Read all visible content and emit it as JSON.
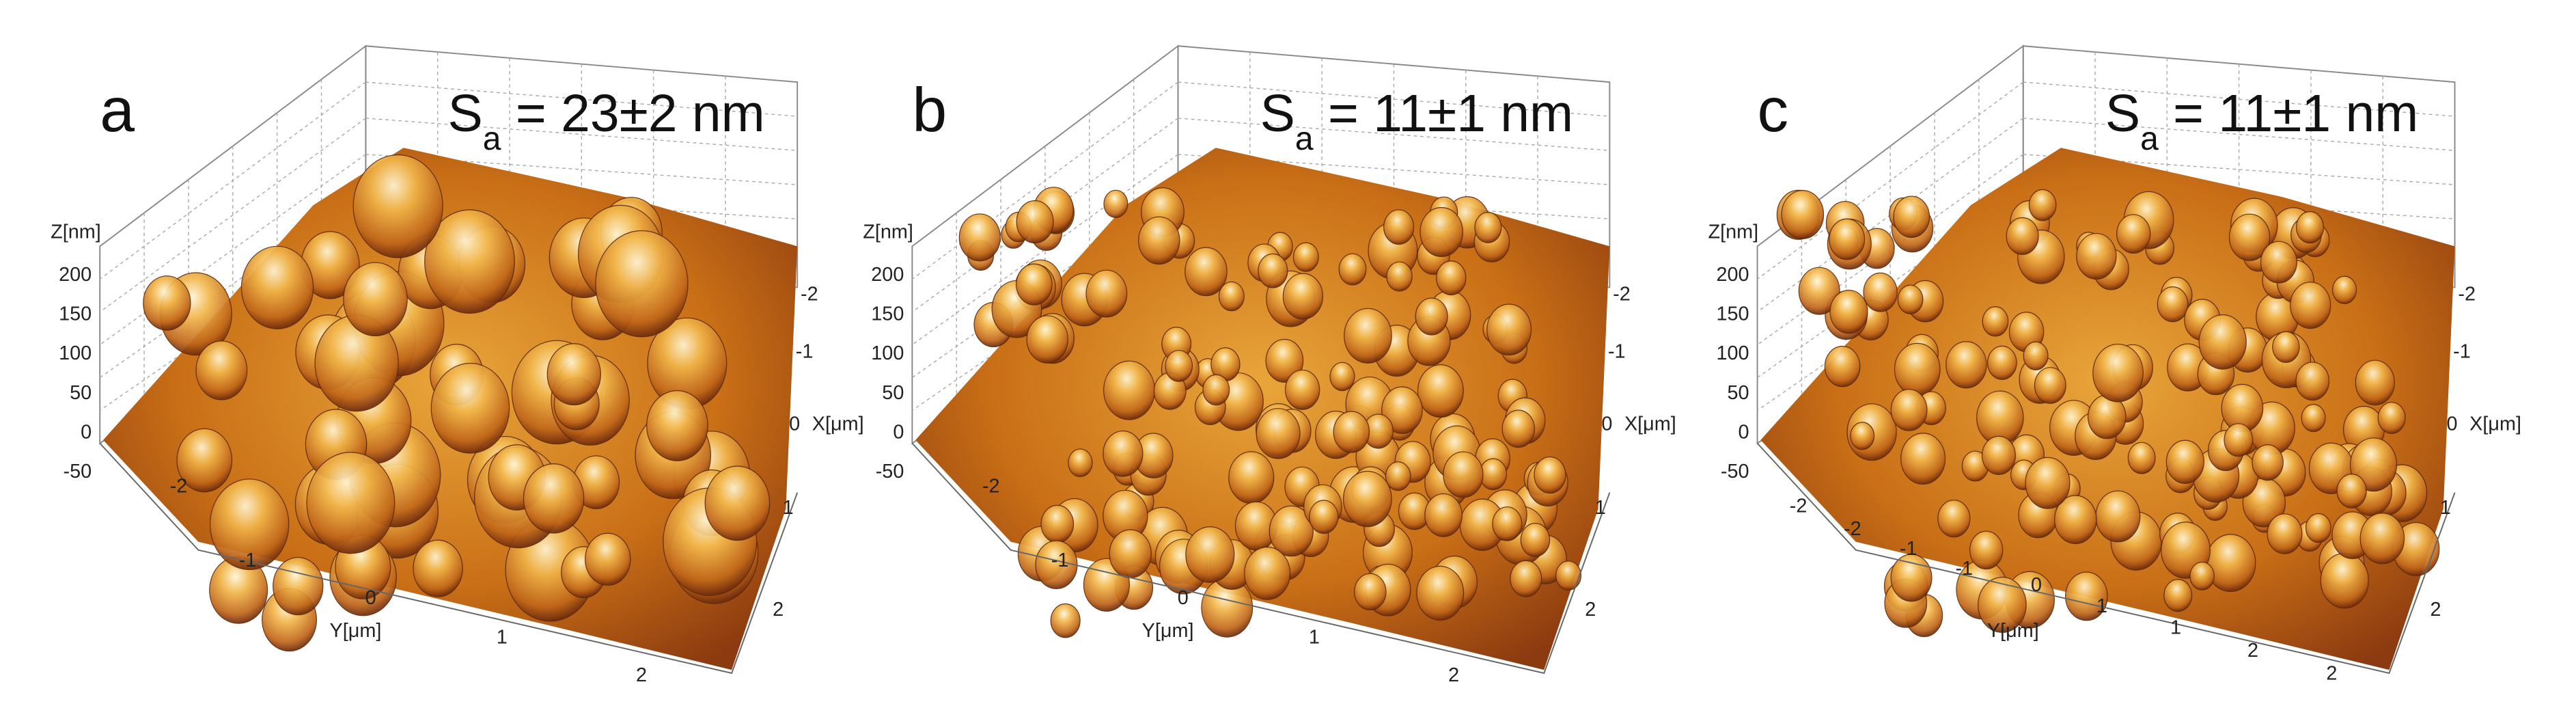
{
  "panels": [
    {
      "label": "a",
      "sa_symbol": "S",
      "sa_subscript": "a",
      "sa_value": " = 23±2 nm",
      "z_axis_title": "Z[nm]",
      "z_ticks": [
        "200",
        "150",
        "100",
        "50",
        "0",
        "-50"
      ],
      "x_ticks": [
        "-2",
        "-1",
        "0",
        "1",
        "2"
      ],
      "x_axis_title": "X[μm]",
      "y_ticks": [
        "-2",
        "-1",
        "0",
        "1",
        "2"
      ],
      "y_axis_title": "Y[μm]"
    },
    {
      "label": "b",
      "sa_symbol": "S",
      "sa_subscript": "a",
      "sa_value": " = 11±1 nm",
      "z_axis_title": "Z[nm]",
      "z_ticks": [
        "200",
        "150",
        "100",
        "50",
        "0",
        "-50"
      ],
      "x_ticks": [
        "-2",
        "-1",
        "0",
        "1",
        "2"
      ],
      "x_axis_title": "X[μm]",
      "y_ticks": [
        "-2",
        "-1",
        "0",
        "1",
        "2"
      ],
      "y_axis_title": "Y[μm]"
    },
    {
      "label": "c",
      "sa_symbol": "S",
      "sa_subscript": "a",
      "sa_value": " = 11±1 nm",
      "z_axis_title": "Z[nm]",
      "z_ticks": [
        "200",
        "150",
        "100",
        "50",
        "0",
        "-50"
      ],
      "x_ticks": [
        "-2",
        "-1",
        "0",
        "1",
        "2"
      ],
      "x_axis_title": "X[μm]",
      "y_ticks": [
        "-2",
        "-2",
        "-1",
        "-1",
        "0",
        "1",
        "1",
        "2",
        "2"
      ],
      "y_axis_title": "Y[μm]"
    }
  ]
}
